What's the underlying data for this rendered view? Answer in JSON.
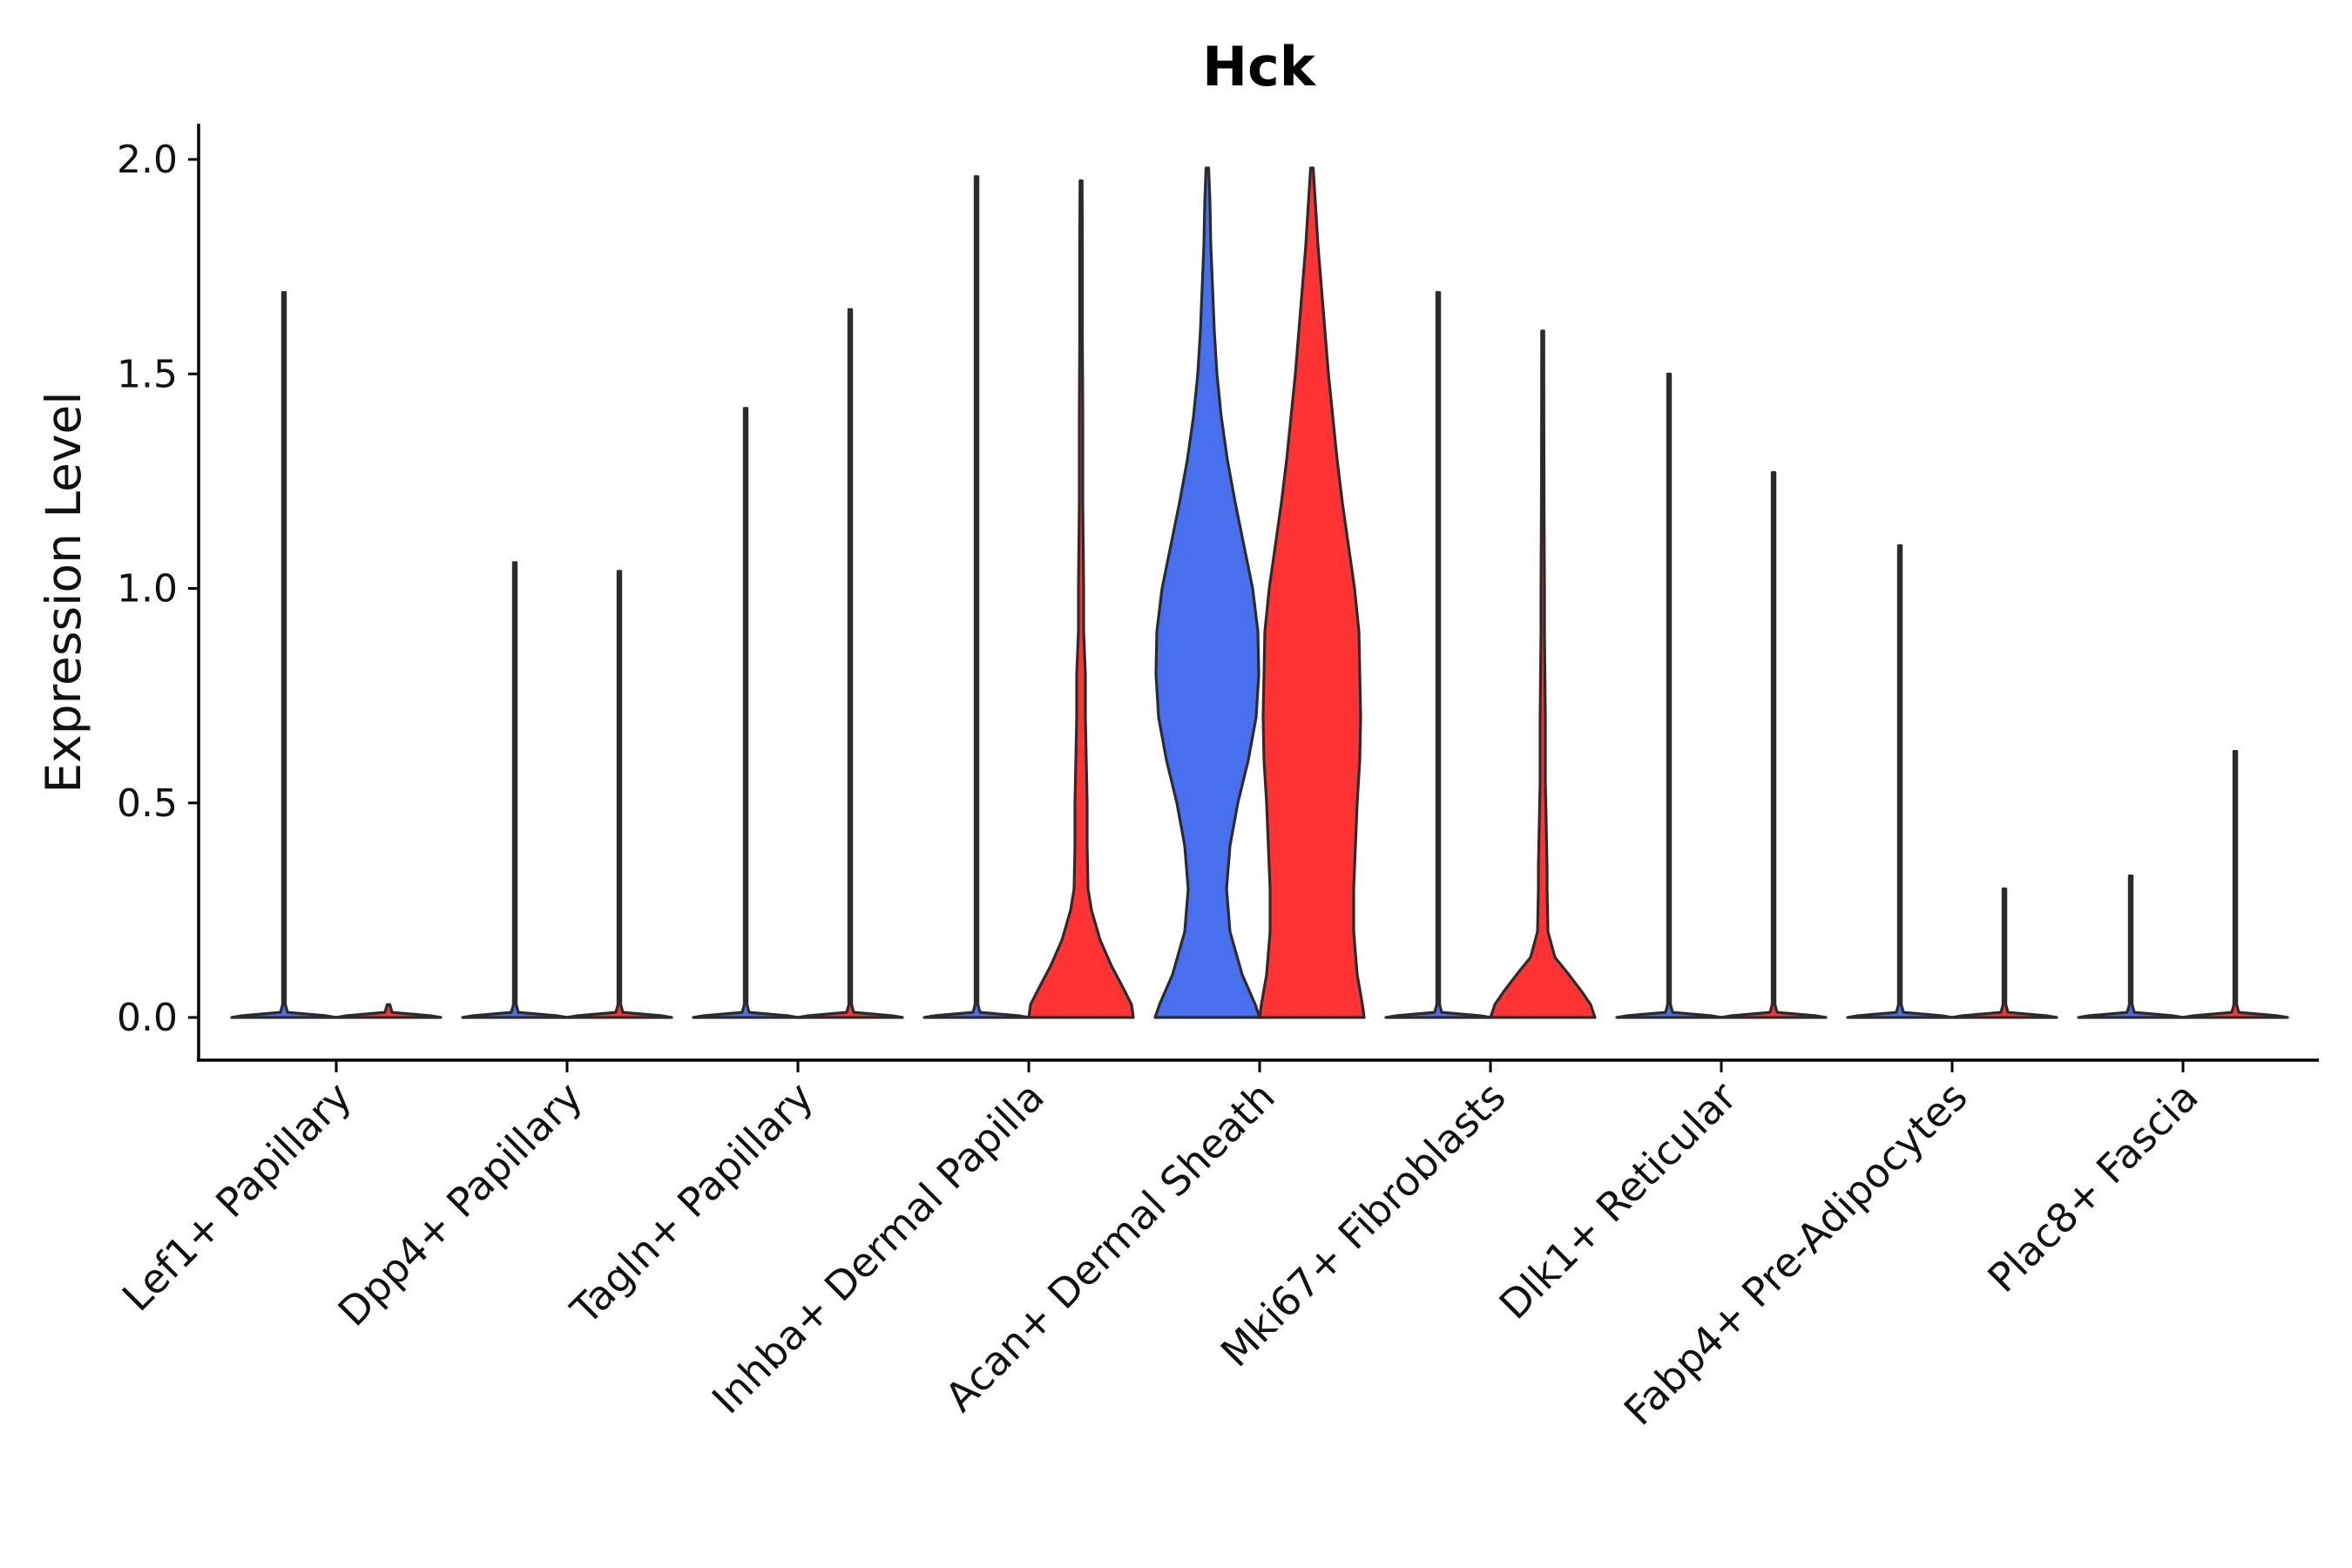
{
  "chart_data": {
    "type": "violin",
    "title": "Hck",
    "xlabel": "",
    "ylabel": "Expression Level",
    "ylim": [
      -0.1,
      2.08
    ],
    "yticks": [
      "0.0",
      "0.5",
      "1.0",
      "1.5",
      "2.0"
    ],
    "ytick_values": [
      0,
      0.5,
      1.0,
      1.5,
      2.0
    ],
    "colors": {
      "blue": "#4870EE",
      "red": "#FF3333",
      "outline": "#2B2B2B"
    },
    "categories": [
      "Lef1+ Papillary",
      "Dpp4+ Papillary",
      "Tagln+ Papillary",
      "Inhba+ Dermal Papilla",
      "Acan+ Dermal Sheath",
      "Mki67+ Fibroblasts",
      "Dlk1+ Reticular",
      "Fabp4+ Pre-Adipocytes",
      "Plac8+ Fascia"
    ],
    "series": [
      {
        "name": "blue",
        "color": "#4870EE",
        "max_values": [
          1.69,
          1.06,
          1.42,
          1.96,
          1.98,
          1.69,
          1.5,
          1.1,
          0.33
        ],
        "shapes": [
          "flat",
          "flat",
          "flat",
          "flat",
          "acan_blue",
          "flat",
          "flat",
          "flat",
          "flat"
        ]
      },
      {
        "name": "red",
        "color": "#FF3333",
        "max_values": [
          0.0,
          1.04,
          1.65,
          1.95,
          1.98,
          1.6,
          1.27,
          0.3,
          0.62
        ],
        "shapes": [
          "flat",
          "flat",
          "flat",
          "inhba_red",
          "acan_red",
          "mki67_red",
          "flat",
          "flat",
          "flat"
        ]
      }
    ]
  }
}
